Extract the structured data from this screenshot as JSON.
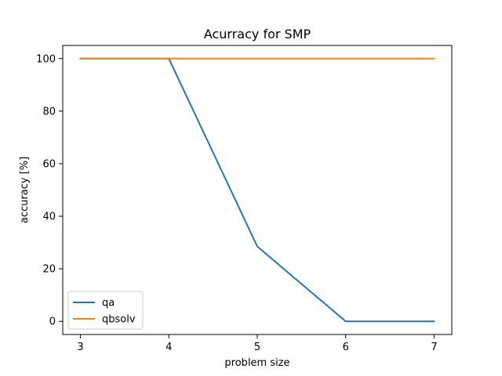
{
  "chart_data": {
    "type": "line",
    "title": "Acurracy for SMP",
    "xlabel": "problem size",
    "ylabel": "accuracy [%]",
    "x": [
      3,
      4,
      5,
      6,
      7
    ],
    "xlim": [
      2.8,
      7.2
    ],
    "ylim": [
      -5,
      105
    ],
    "xticks": [
      3,
      4,
      5,
      6,
      7
    ],
    "yticks": [
      0,
      20,
      40,
      60,
      80,
      100
    ],
    "grid": false,
    "legend_position": "lower-left",
    "series": [
      {
        "name": "qa",
        "color": "#1f77b4",
        "values": [
          100,
          100,
          28.5,
          0,
          0
        ]
      },
      {
        "name": "qbsolv",
        "color": "#ff7f0e",
        "values": [
          100,
          100,
          100,
          100,
          100
        ]
      }
    ]
  }
}
